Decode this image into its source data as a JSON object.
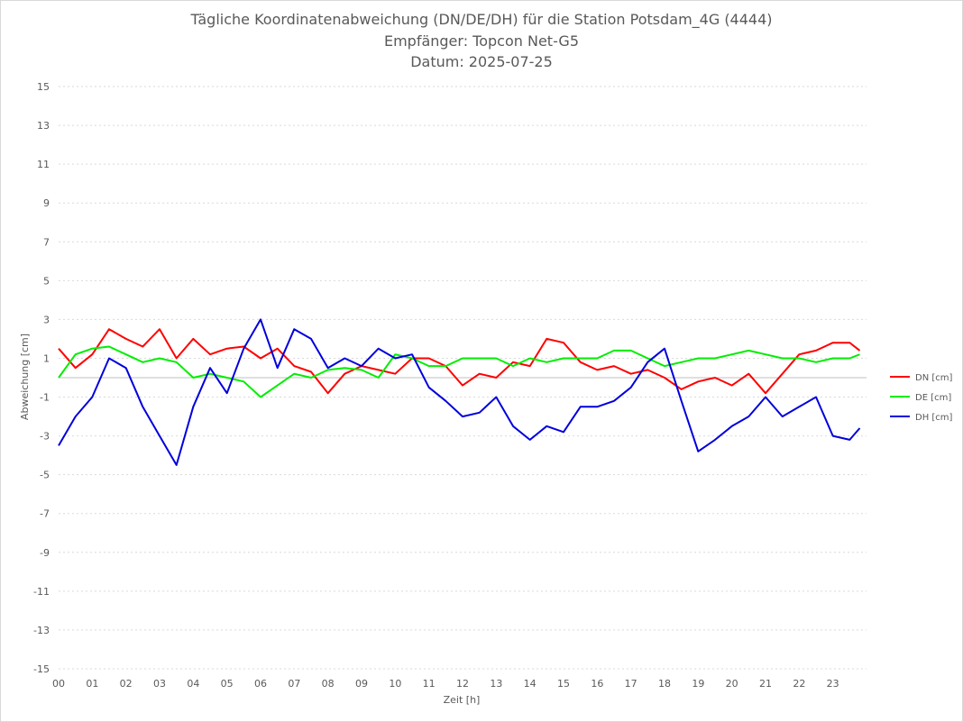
{
  "chart_data": {
    "type": "line",
    "title": [
      "Tägliche Koordinatenabweichung (DN/DE/DH) für die Station Potsdam_4G (4444)",
      "Empfänger: Topcon Net-G5",
      "Datum: 2025-07-25"
    ],
    "xlabel": "Zeit [h]",
    "ylabel": "Abweichung [cm]",
    "xlim": [
      0,
      24
    ],
    "ylim": [
      -15,
      15
    ],
    "xticks": [
      "00",
      "01",
      "02",
      "03",
      "04",
      "05",
      "06",
      "07",
      "08",
      "09",
      "10",
      "11",
      "12",
      "13",
      "14",
      "15",
      "16",
      "17",
      "18",
      "19",
      "20",
      "21",
      "22",
      "23"
    ],
    "yticks": [
      15,
      13,
      11,
      9,
      7,
      5,
      3,
      1,
      -1,
      -3,
      -5,
      -7,
      -9,
      -11,
      -13,
      -15
    ],
    "grid": "horizontal-dashed",
    "legend_position": "right",
    "series": [
      {
        "name": "DN [cm]",
        "color": "#ff0000",
        "x": [
          0,
          0.5,
          1,
          1.5,
          2,
          2.5,
          3,
          3.5,
          4,
          4.5,
          5,
          5.5,
          6,
          6.5,
          7,
          7.5,
          8,
          8.5,
          9,
          9.5,
          10,
          10.5,
          11,
          11.5,
          12,
          12.5,
          13,
          13.5,
          14,
          14.5,
          15,
          15.5,
          16,
          16.5,
          17,
          17.5,
          18,
          18.5,
          19,
          19.5,
          20,
          20.5,
          21,
          21.5,
          22,
          22.5,
          23,
          23.5,
          23.8
        ],
        "y": [
          1.5,
          0.5,
          1.2,
          2.5,
          2.0,
          1.6,
          2.5,
          1.0,
          2.0,
          1.2,
          1.5,
          1.6,
          1.0,
          1.5,
          0.6,
          0.3,
          -0.8,
          0.2,
          0.6,
          0.4,
          0.2,
          1.0,
          1.0,
          0.6,
          -0.4,
          0.2,
          0.0,
          0.8,
          0.6,
          2.0,
          1.8,
          0.8,
          0.4,
          0.6,
          0.2,
          0.4,
          0.0,
          -0.6,
          -0.2,
          0.0,
          -0.4,
          0.2,
          -0.8,
          0.2,
          1.2,
          1.4,
          1.8,
          1.8,
          1.4
        ]
      },
      {
        "name": "DE [cm]",
        "color": "#00ee00",
        "x": [
          0,
          0.5,
          1,
          1.5,
          2,
          2.5,
          3,
          3.5,
          4,
          4.5,
          5,
          5.5,
          6,
          6.5,
          7,
          7.5,
          8,
          8.5,
          9,
          9.5,
          10,
          10.5,
          11,
          11.5,
          12,
          12.5,
          13,
          13.5,
          14,
          14.5,
          15,
          15.5,
          16,
          16.5,
          17,
          17.5,
          18,
          18.5,
          19,
          19.5,
          20,
          20.5,
          21,
          21.5,
          22,
          22.5,
          23,
          23.5,
          23.8
        ],
        "y": [
          0.0,
          1.2,
          1.5,
          1.6,
          1.2,
          0.8,
          1.0,
          0.8,
          0.0,
          0.2,
          0.0,
          -0.2,
          -1.0,
          -0.4,
          0.2,
          0.0,
          0.4,
          0.5,
          0.4,
          0.0,
          1.2,
          1.0,
          0.6,
          0.6,
          1.0,
          1.0,
          1.0,
          0.6,
          1.0,
          0.8,
          1.0,
          1.0,
          1.0,
          1.4,
          1.4,
          1.0,
          0.6,
          0.8,
          1.0,
          1.0,
          1.2,
          1.4,
          1.2,
          1.0,
          1.0,
          0.8,
          1.0,
          1.0,
          1.2
        ]
      },
      {
        "name": "DH [cm]",
        "color": "#0000dd",
        "x": [
          0,
          0.5,
          1,
          1.5,
          2,
          2.5,
          3,
          3.5,
          4,
          4.5,
          5,
          5.5,
          6,
          6.5,
          7,
          7.5,
          8,
          8.5,
          9,
          9.5,
          10,
          10.5,
          11,
          11.5,
          12,
          12.5,
          13,
          13.5,
          14,
          14.5,
          15,
          15.5,
          16,
          16.5,
          17,
          17.5,
          18,
          18.5,
          19,
          19.5,
          20,
          20.5,
          21,
          21.5,
          22,
          22.5,
          23,
          23.5,
          23.8
        ],
        "y": [
          -3.5,
          -2.0,
          -1.0,
          1.0,
          0.5,
          -1.5,
          -3.0,
          -4.5,
          -1.5,
          0.5,
          -0.8,
          1.5,
          3.0,
          0.5,
          2.5,
          2.0,
          0.5,
          1.0,
          0.6,
          1.5,
          1.0,
          1.2,
          -0.5,
          -1.2,
          -2.0,
          -1.8,
          -1.0,
          -2.5,
          -3.2,
          -2.5,
          -2.8,
          -1.5,
          -1.5,
          -1.2,
          -0.5,
          0.8,
          1.5,
          -1.2,
          -3.8,
          -3.2,
          -2.5,
          -2.0,
          -1.0,
          -2.0,
          -1.5,
          -1.0,
          -3.0,
          -3.2,
          -2.6
        ]
      }
    ]
  }
}
